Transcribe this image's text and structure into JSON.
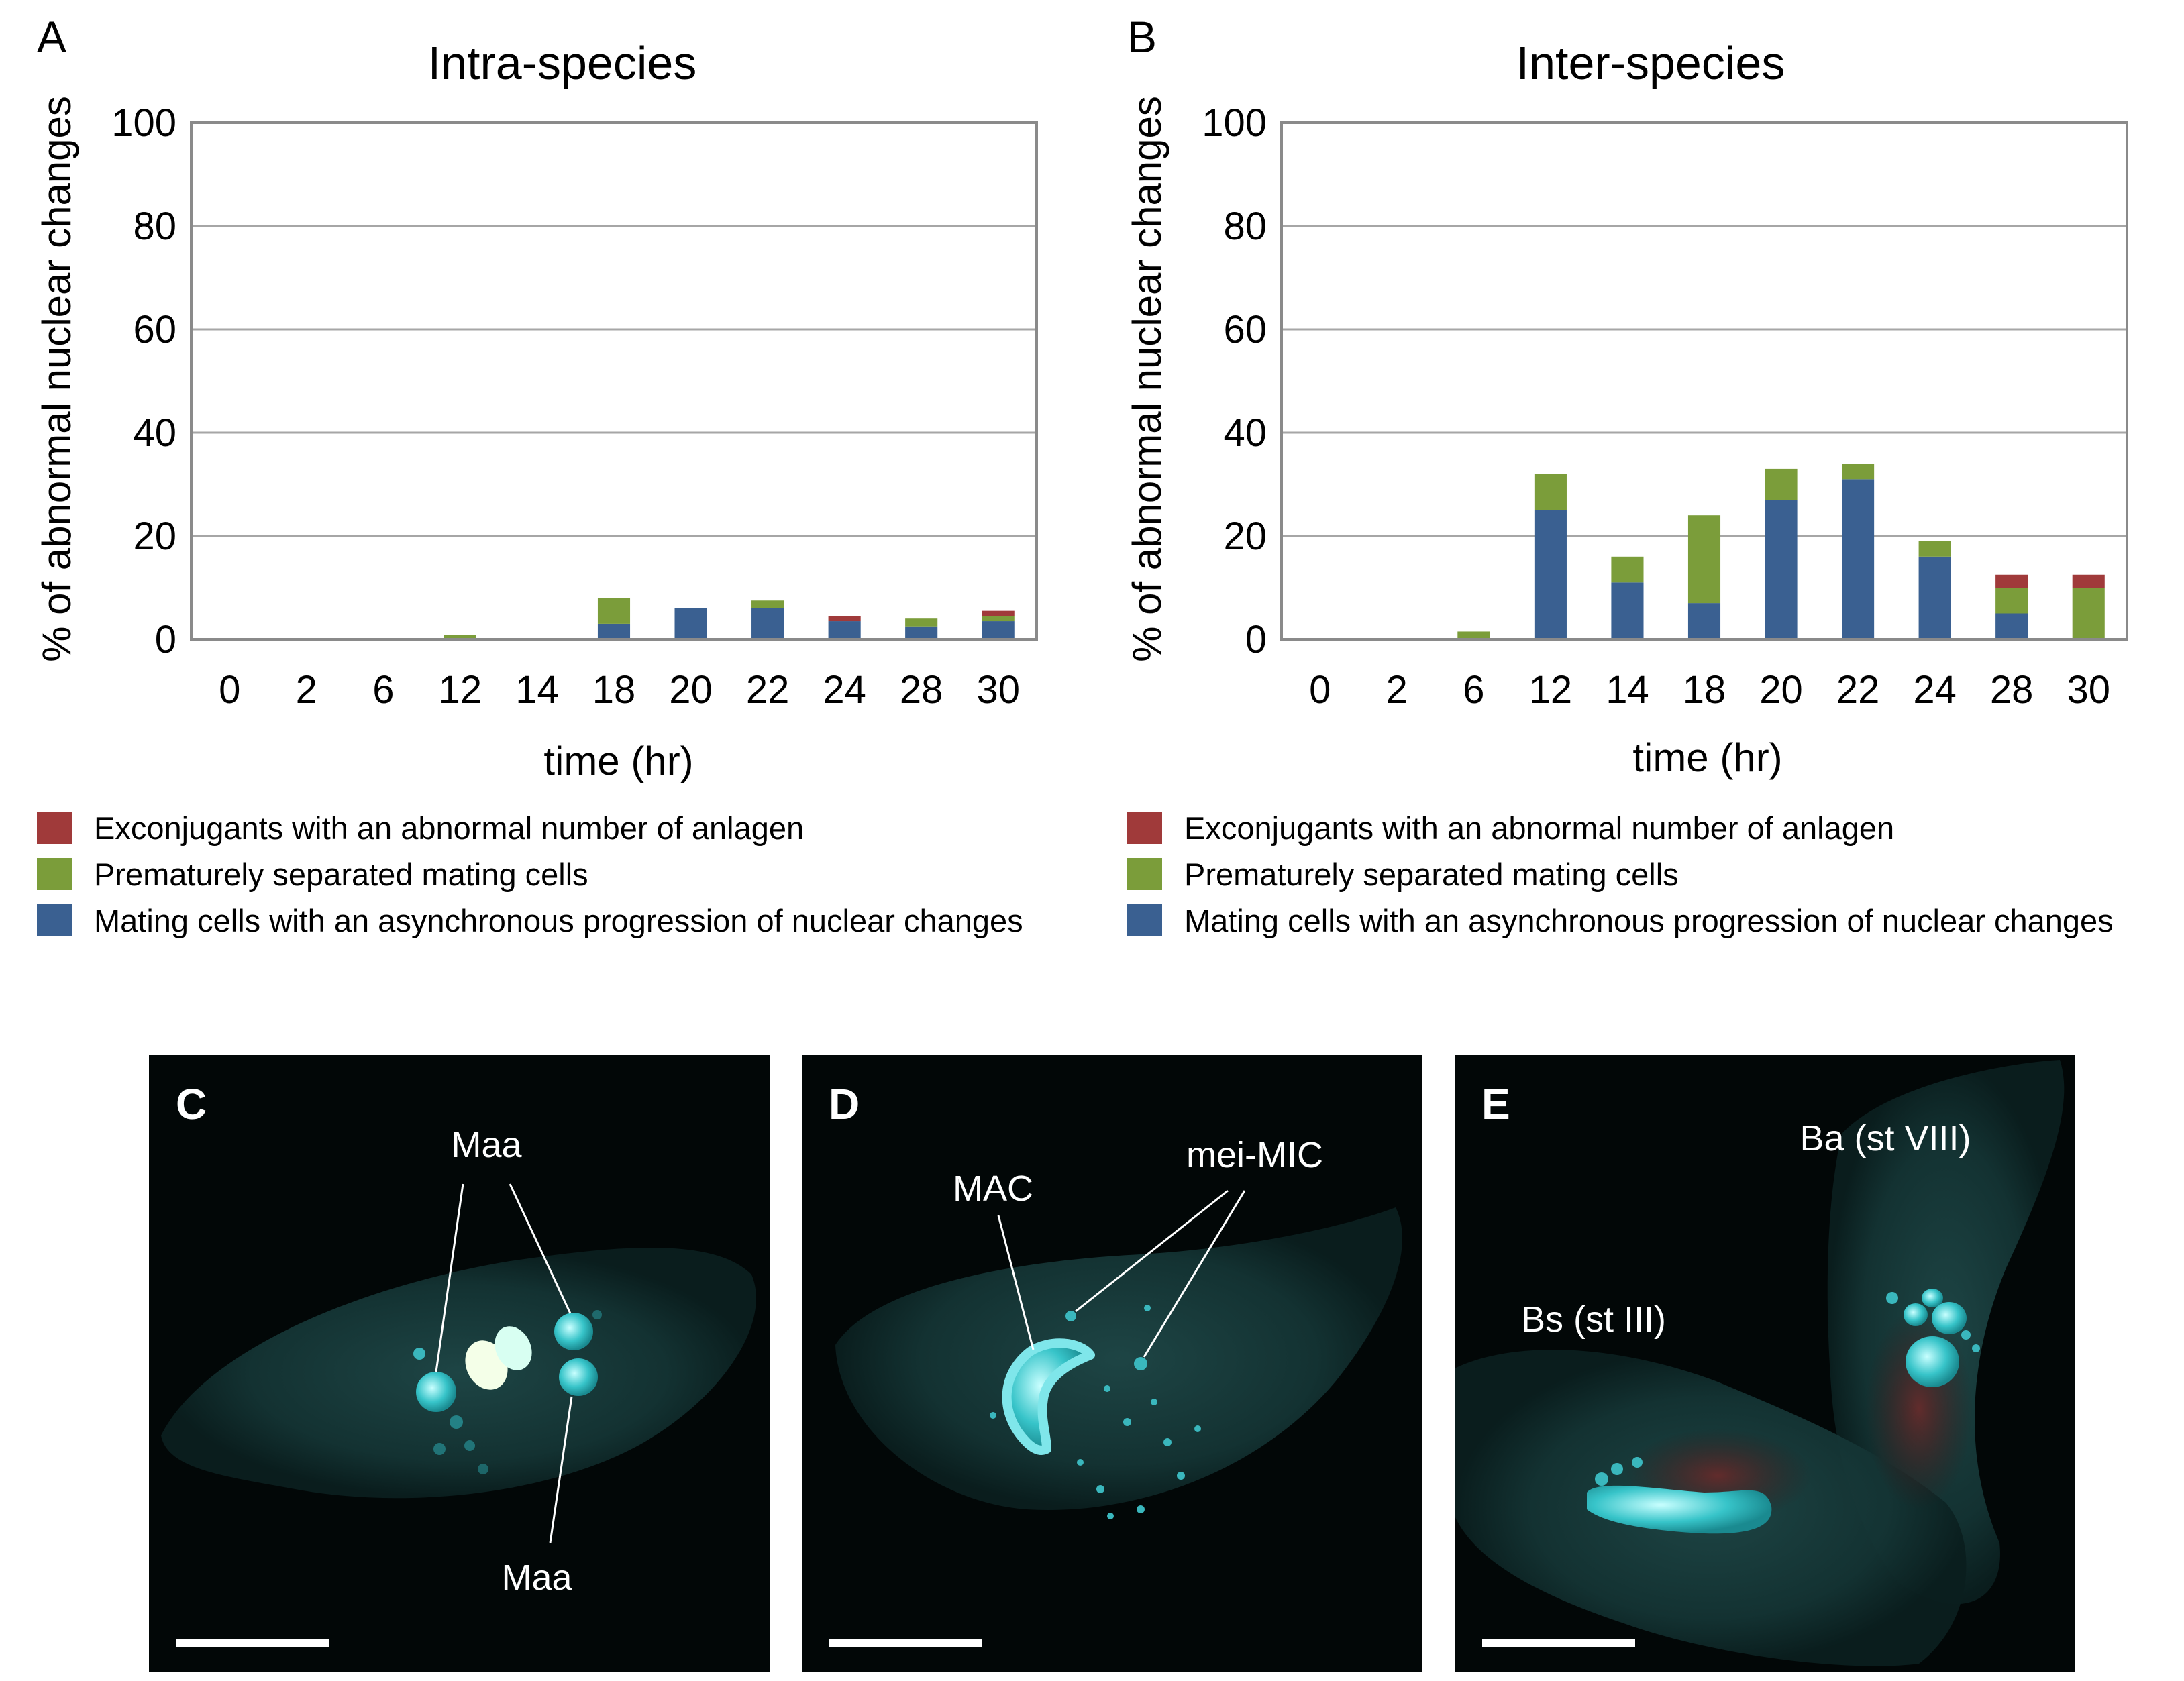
{
  "chart_data": [
    {
      "type": "bar",
      "stacked": true,
      "panel": "A",
      "title": "Intra-species",
      "xlabel": "time (hr)",
      "ylabel": "% of abnormal nuclear changes",
      "ylim": [
        0,
        100
      ],
      "yticks": [
        "0",
        "20",
        "40",
        "60",
        "80",
        "100"
      ],
      "grid": true,
      "categories": [
        "0",
        "2",
        "6",
        "12",
        "14",
        "18",
        "20",
        "22",
        "24",
        "28",
        "30"
      ],
      "series": [
        {
          "name": "Mating cells with an asynchronous progression of nuclear changes",
          "color": "#3a6091",
          "values": [
            0,
            0,
            0,
            0,
            0,
            3,
            6,
            6,
            3.5,
            2.5,
            3.5
          ]
        },
        {
          "name": "Prematurely separated mating cells",
          "color": "#7b9d3a",
          "values": [
            0,
            0,
            0,
            0.8,
            0,
            5,
            0,
            1.5,
            0,
            1.5,
            1
          ]
        },
        {
          "name": "Exconjugants with an abnormal number of anlagen",
          "color": "#a03a3a",
          "values": [
            0,
            0,
            0,
            0,
            0,
            0,
            0,
            0,
            1,
            0,
            1
          ]
        }
      ]
    },
    {
      "type": "bar",
      "stacked": true,
      "panel": "B",
      "title": "Inter-species",
      "xlabel": "time (hr)",
      "ylabel": "% of abnormal nuclear changes",
      "ylim": [
        0,
        100
      ],
      "yticks": [
        "0",
        "20",
        "40",
        "60",
        "80",
        "100"
      ],
      "grid": true,
      "categories": [
        "0",
        "2",
        "6",
        "12",
        "14",
        "18",
        "20",
        "22",
        "24",
        "28",
        "30"
      ],
      "series": [
        {
          "name": "Mating cells with an asynchronous progression of nuclear changes",
          "color": "#3a6091",
          "values": [
            0,
            0,
            0,
            25,
            11,
            7,
            27,
            31,
            16,
            5,
            0
          ]
        },
        {
          "name": "Prematurely separated mating cells",
          "color": "#7b9d3a",
          "values": [
            0,
            0,
            1.5,
            7,
            5,
            17,
            6,
            3,
            3,
            5,
            10
          ]
        },
        {
          "name": "Exconjugants with an abnormal number of anlagen",
          "color": "#a03a3a",
          "values": [
            0,
            0,
            0,
            0,
            0,
            0,
            0,
            0,
            0,
            2.5,
            2.5
          ]
        }
      ]
    }
  ],
  "legend": [
    {
      "label": "Exconjugants with an abnormal number of anlagen",
      "color": "#a03a3a"
    },
    {
      "label": "Prematurely separated mating cells",
      "color": "#7b9d3a"
    },
    {
      "label": "Mating cells with an asynchronous progression of nuclear changes",
      "color": "#3a6091"
    }
  ],
  "micrographs": [
    {
      "letter": "C",
      "labels": [
        "Maa",
        "Maa"
      ]
    },
    {
      "letter": "D",
      "labels": [
        "MAC",
        "mei-MIC"
      ]
    },
    {
      "letter": "E",
      "labels": [
        "Ba (st VIII)",
        "Bs (st III)"
      ]
    }
  ]
}
